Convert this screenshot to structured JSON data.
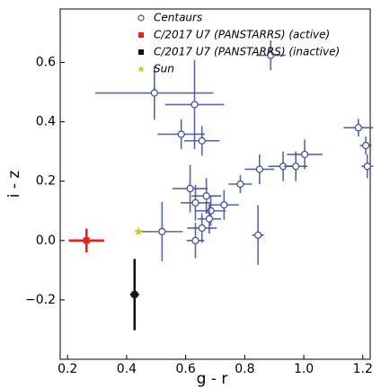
{
  "chart_data": {
    "type": "scatter",
    "x_label": "g - r",
    "y_label": "i - z",
    "xlim": [
      0.175,
      1.225
    ],
    "ylim": [
      -0.4,
      0.78
    ],
    "xticks": [
      0.2,
      0.4,
      0.6,
      0.8,
      {
        "value": 1,
        "label": "1.0"
      },
      1.2
    ],
    "yticks": [
      {
        "value": -0.2,
        "label": "−0.2"
      },
      {
        "value": 0,
        "label": "0.0"
      },
      0.2,
      0.4,
      0.6
    ],
    "legend": "upper left",
    "series": [
      {
        "name": "Centaurs",
        "color": "#3a4ba0",
        "marker": "circle",
        "x": [
          0.494,
          0.63,
          0.585,
          0.655,
          0.888,
          1.185,
          1.21,
          1.215,
          1.003,
          0.93,
          0.973,
          0.85,
          0.785,
          0.615,
          0.67,
          0.633,
          0.685,
          0.68,
          0.655,
          0.633,
          0.52,
          0.845,
          0.73
        ],
        "values": [
          0.497,
          0.458,
          0.358,
          0.336,
          0.624,
          0.38,
          0.32,
          0.25,
          0.29,
          0.25,
          0.25,
          0.24,
          0.19,
          0.175,
          0.15,
          0.127,
          0.1,
          0.073,
          0.042,
          0.0,
          0.03,
          0.018,
          0.12
        ],
        "xerr": [
          0.2,
          0.1,
          0.08,
          0.06,
          0.05,
          0.05,
          0.02,
          0.02,
          0.06,
          0.05,
          0.04,
          0.05,
          0.04,
          0.06,
          0.05,
          0.05,
          0.05,
          0.04,
          0.05,
          0.03,
          0.07,
          0.02,
          0.05
        ],
        "yerr": [
          0.09,
          0.15,
          0.05,
          0.05,
          0.05,
          0.03,
          0.03,
          0.04,
          0.05,
          0.05,
          0.05,
          0.05,
          0.03,
          0.08,
          0.06,
          0.06,
          0.05,
          0.05,
          0.05,
          0.06,
          0.1,
          0.1,
          0.05
        ]
      },
      {
        "name": "C/2017 U7 (PANSTARRS) (active)",
        "color": "#e8201a",
        "marker": "square",
        "x": [
          0.264
        ],
        "values": [
          0.0
        ],
        "xerr": [
          0.06
        ],
        "yerr": [
          0.04
        ]
      },
      {
        "name": "C/2017 U7 (PANSTARRS) (inactive)",
        "color": "#111111",
        "marker": "square",
        "x": [
          0.427
        ],
        "values": [
          -0.182
        ],
        "xerr": [
          0.015
        ],
        "yerr": [
          0.12
        ]
      },
      {
        "name": "Sun",
        "color": "#d8c81a",
        "marker": "star",
        "x": [
          0.44
        ],
        "values": [
          0.03
        ]
      }
    ]
  }
}
